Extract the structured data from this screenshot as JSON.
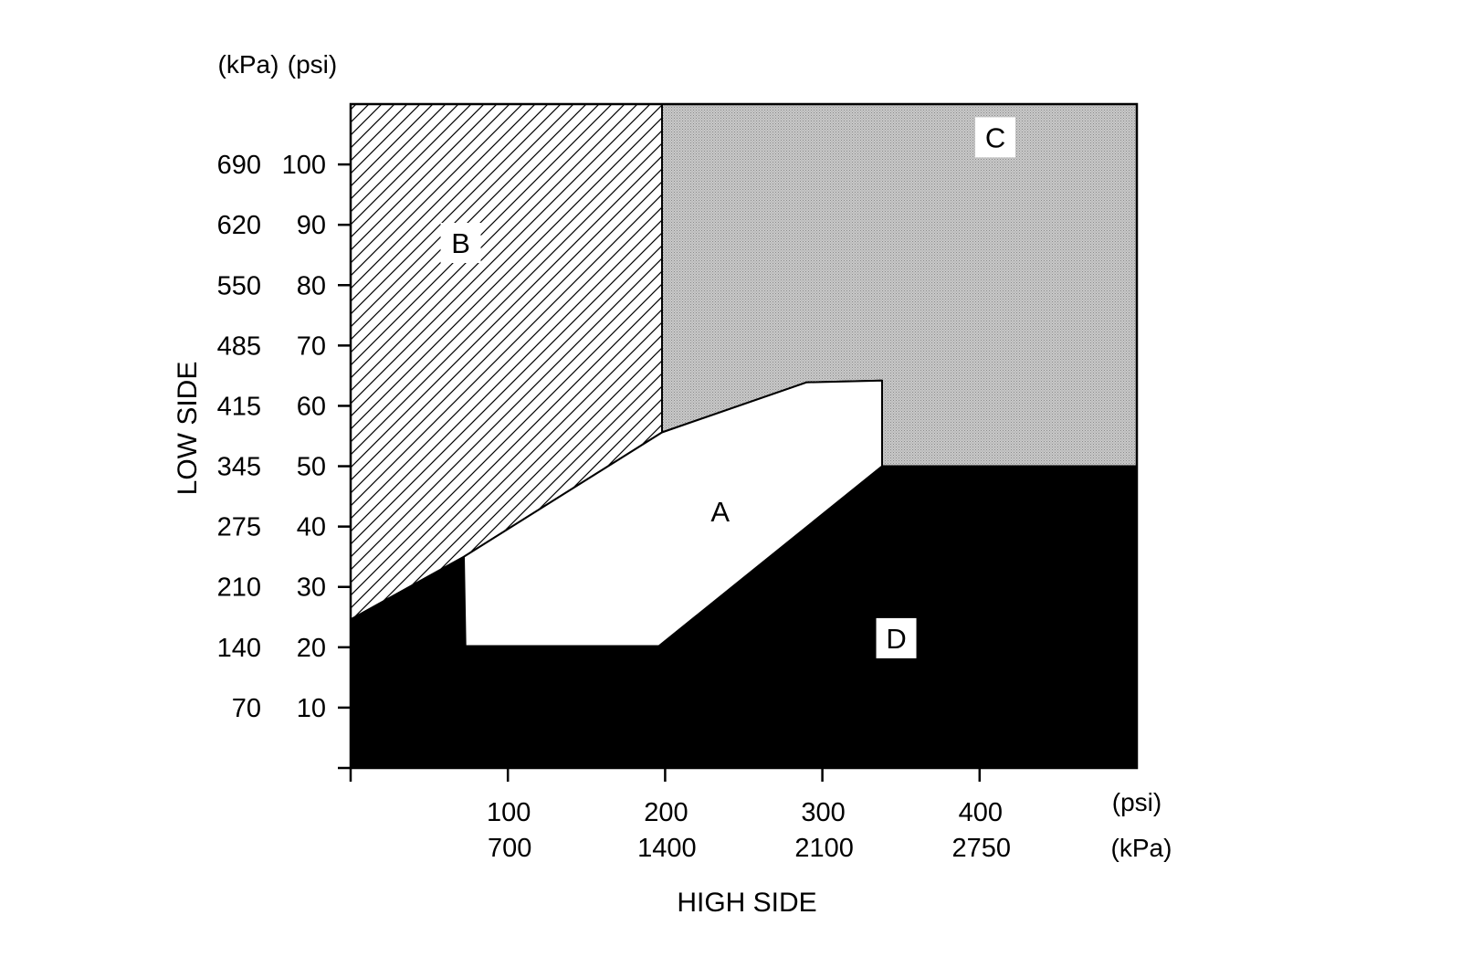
{
  "chart_data": {
    "type": "area",
    "title": "",
    "xlabel": "HIGH SIDE",
    "ylabel": "LOW SIDE",
    "x_units_top": "(psi)",
    "x_units_bottom": "(kPa)",
    "y_units_kpa": "(kPa)",
    "y_units_psi": "(psi)",
    "xlim": [
      0,
      500
    ],
    "ylim": [
      0,
      110
    ],
    "x_ticks": [
      {
        "psi": 0,
        "label_psi": "",
        "label_kpa": ""
      },
      {
        "psi": 100,
        "label_psi": "100",
        "label_kpa": "700"
      },
      {
        "psi": 200,
        "label_psi": "200",
        "label_kpa": "1400"
      },
      {
        "psi": 300,
        "label_psi": "300",
        "label_kpa": "2100"
      },
      {
        "psi": 400,
        "label_psi": "400",
        "label_kpa": "2750"
      }
    ],
    "y_ticks": [
      {
        "psi": 0,
        "label_psi": "",
        "label_kpa": ""
      },
      {
        "psi": 10,
        "label_psi": "10",
        "label_kpa": "70"
      },
      {
        "psi": 20,
        "label_psi": "20",
        "label_kpa": "140"
      },
      {
        "psi": 30,
        "label_psi": "30",
        "label_kpa": "210"
      },
      {
        "psi": 40,
        "label_psi": "40",
        "label_kpa": "275"
      },
      {
        "psi": 50,
        "label_psi": "50",
        "label_kpa": "345"
      },
      {
        "psi": 60,
        "label_psi": "60",
        "label_kpa": "415"
      },
      {
        "psi": 70,
        "label_psi": "70",
        "label_kpa": "485"
      },
      {
        "psi": 80,
        "label_psi": "80",
        "label_kpa": "550"
      },
      {
        "psi": 90,
        "label_psi": "90",
        "label_kpa": "620"
      },
      {
        "psi": 100,
        "label_psi": "100",
        "label_kpa": "690"
      }
    ],
    "regions": [
      {
        "label": "C",
        "fill": "dots-gray",
        "polygon": [
          [
            198,
            110
          ],
          [
            500,
            110
          ],
          [
            500,
            50
          ],
          [
            338,
            50
          ],
          [
            338,
            64.2
          ],
          [
            290,
            63.9
          ],
          [
            198,
            55.6
          ]
        ],
        "label_at": [
          410,
          104.5
        ]
      },
      {
        "label": "B",
        "fill": "hatch",
        "polygon": [
          [
            0,
            110
          ],
          [
            198,
            110
          ],
          [
            198,
            55.6
          ],
          [
            72,
            35
          ],
          [
            0,
            24.6
          ]
        ],
        "label_at": [
          70,
          87
        ]
      },
      {
        "label": "D",
        "fill": "#000000",
        "polygon": [
          [
            0,
            24.6
          ],
          [
            72,
            35
          ],
          [
            73,
            20.2
          ],
          [
            196,
            20.2
          ],
          [
            338,
            50
          ],
          [
            500,
            50
          ],
          [
            500,
            0
          ],
          [
            0,
            0
          ]
        ],
        "label_at": [
          347,
          21.5
        ]
      },
      {
        "label": "A",
        "fill": "#ffffff",
        "polygon": [
          [
            72,
            35
          ],
          [
            198,
            55.6
          ],
          [
            290,
            63.9
          ],
          [
            338,
            64.2
          ],
          [
            338,
            50
          ],
          [
            196,
            20.2
          ],
          [
            73,
            20.2
          ]
        ],
        "label_at": [
          235,
          42.5
        ]
      }
    ],
    "grid": false,
    "legend": "none"
  }
}
